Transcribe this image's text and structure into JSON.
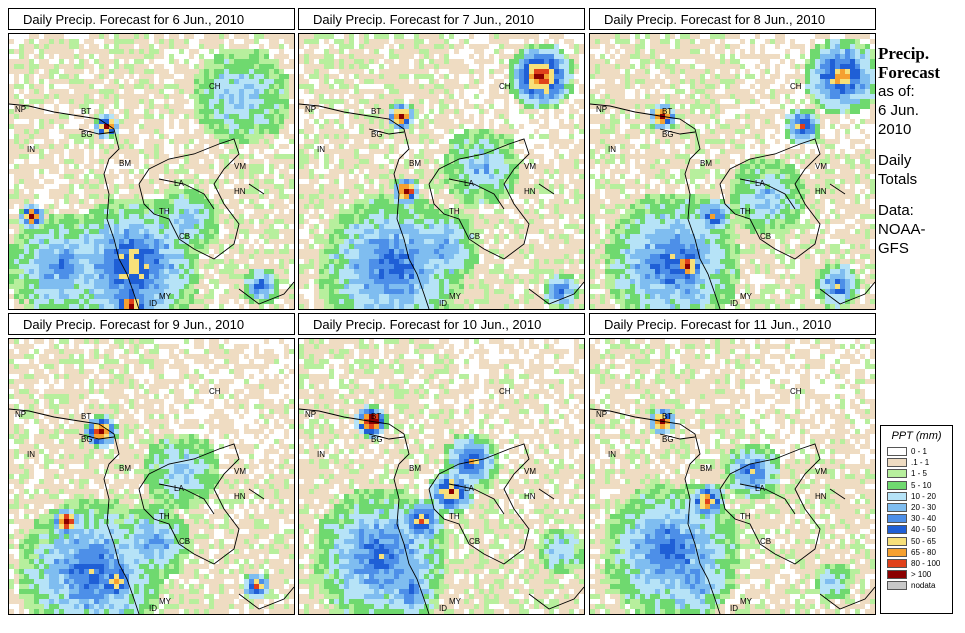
{
  "panels": [
    {
      "title": "Daily Precip. Forecast for  6 Jun., 2010"
    },
    {
      "title": "Daily Precip. Forecast for  7 Jun., 2010"
    },
    {
      "title": "Daily Precip. Forecast for  8 Jun., 2010"
    },
    {
      "title": "Daily Precip. Forecast for  9 Jun., 2010"
    },
    {
      "title": "Daily Precip. Forecast for  10 Jun., 2010"
    },
    {
      "title": "Daily Precip. Forecast for  11 Jun., 2010"
    }
  ],
  "map_labels": [
    "NP",
    "BT",
    "BG",
    "IN",
    "BM",
    "CH",
    "VM",
    "LA",
    "HN",
    "TH",
    "CB",
    "MY",
    "ID"
  ],
  "sidebar": {
    "heading1": "Precip.",
    "heading2": "Forecast",
    "line1": "as of:",
    "line2": "6 Jun.",
    "line3": "2010",
    "line4": "Daily",
    "line5": "Totals",
    "line6": "Data:",
    "line7": "NOAA-",
    "line8": "GFS"
  },
  "legend": {
    "title": "PPT (mm)",
    "items": [
      {
        "label": "0 - 1",
        "color": "#ffffff"
      },
      {
        "label": ".1 - 1",
        "color": "#efdcc2"
      },
      {
        "label": "1 - 5",
        "color": "#b7ef9d"
      },
      {
        "label": "5 - 10",
        "color": "#6fd96f"
      },
      {
        "label": "10 - 20",
        "color": "#b6e3f7"
      },
      {
        "label": "20 - 30",
        "color": "#7fbdf0"
      },
      {
        "label": "30 - 40",
        "color": "#4d8fe8"
      },
      {
        "label": "40 - 50",
        "color": "#1f5fd6"
      },
      {
        "label": "50 - 65",
        "color": "#f7e07a"
      },
      {
        "label": "65 - 80",
        "color": "#f5a030"
      },
      {
        "label": "80 - 100",
        "color": "#e0401a"
      },
      {
        "label": "> 100",
        "color": "#8b0000"
      },
      {
        "label": "nodata",
        "color": "#c8c8c8"
      }
    ]
  }
}
